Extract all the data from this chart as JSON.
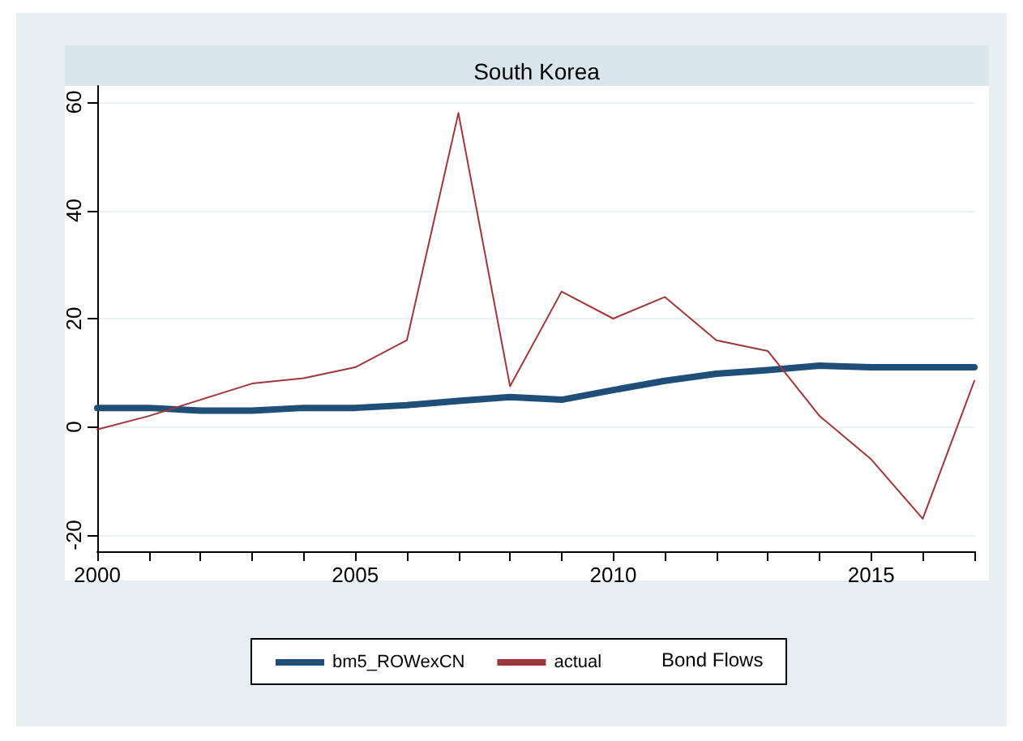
{
  "chart_data": {
    "type": "line",
    "title": "South Korea",
    "legend_title": "Bond Flows",
    "x": [
      2000,
      2001,
      2002,
      2003,
      2004,
      2005,
      2006,
      2007,
      2008,
      2009,
      2010,
      2011,
      2012,
      2013,
      2014,
      2015,
      2016,
      2017
    ],
    "series": [
      {
        "name": "bm5_ROWexCN",
        "color": "#1f4e79",
        "values": [
          3.5,
          3.5,
          3,
          3,
          3.5,
          3.5,
          4,
          4.8,
          5.5,
          5,
          6.8,
          8.5,
          9.8,
          10.5,
          11.3,
          11,
          11,
          11
        ]
      },
      {
        "name": "actual",
        "color": "#a0353a",
        "values": [
          -0.5,
          2,
          5,
          8,
          9,
          11,
          16,
          58,
          7.5,
          25,
          20,
          24,
          16,
          14,
          2,
          -6,
          -17,
          8.5
        ]
      }
    ],
    "xlim": [
      2000,
      2017
    ],
    "xticks": [
      2000,
      {
        "value": 2001,
        "label": null
      },
      {
        "value": 2002,
        "label": null
      },
      {
        "value": 2003,
        "label": null
      },
      {
        "value": 2004,
        "label": null
      },
      2005,
      {
        "value": 2006,
        "label": null
      },
      {
        "value": 2007,
        "label": null
      },
      {
        "value": 2008,
        "label": null
      },
      {
        "value": 2009,
        "label": null
      },
      2010,
      {
        "value": 2011,
        "label": null
      },
      {
        "value": 2012,
        "label": null
      },
      {
        "value": 2013,
        "label": null
      },
      {
        "value": 2014,
        "label": null
      },
      2015,
      {
        "value": 2016,
        "label": null
      },
      {
        "value": 2017,
        "label": null
      }
    ],
    "ylim": [
      -23,
      63
    ],
    "yticks": [
      -20,
      0,
      20,
      40,
      60
    ],
    "grid": "y",
    "legend": "bottom",
    "marker": "none",
    "line_style": "solid"
  }
}
